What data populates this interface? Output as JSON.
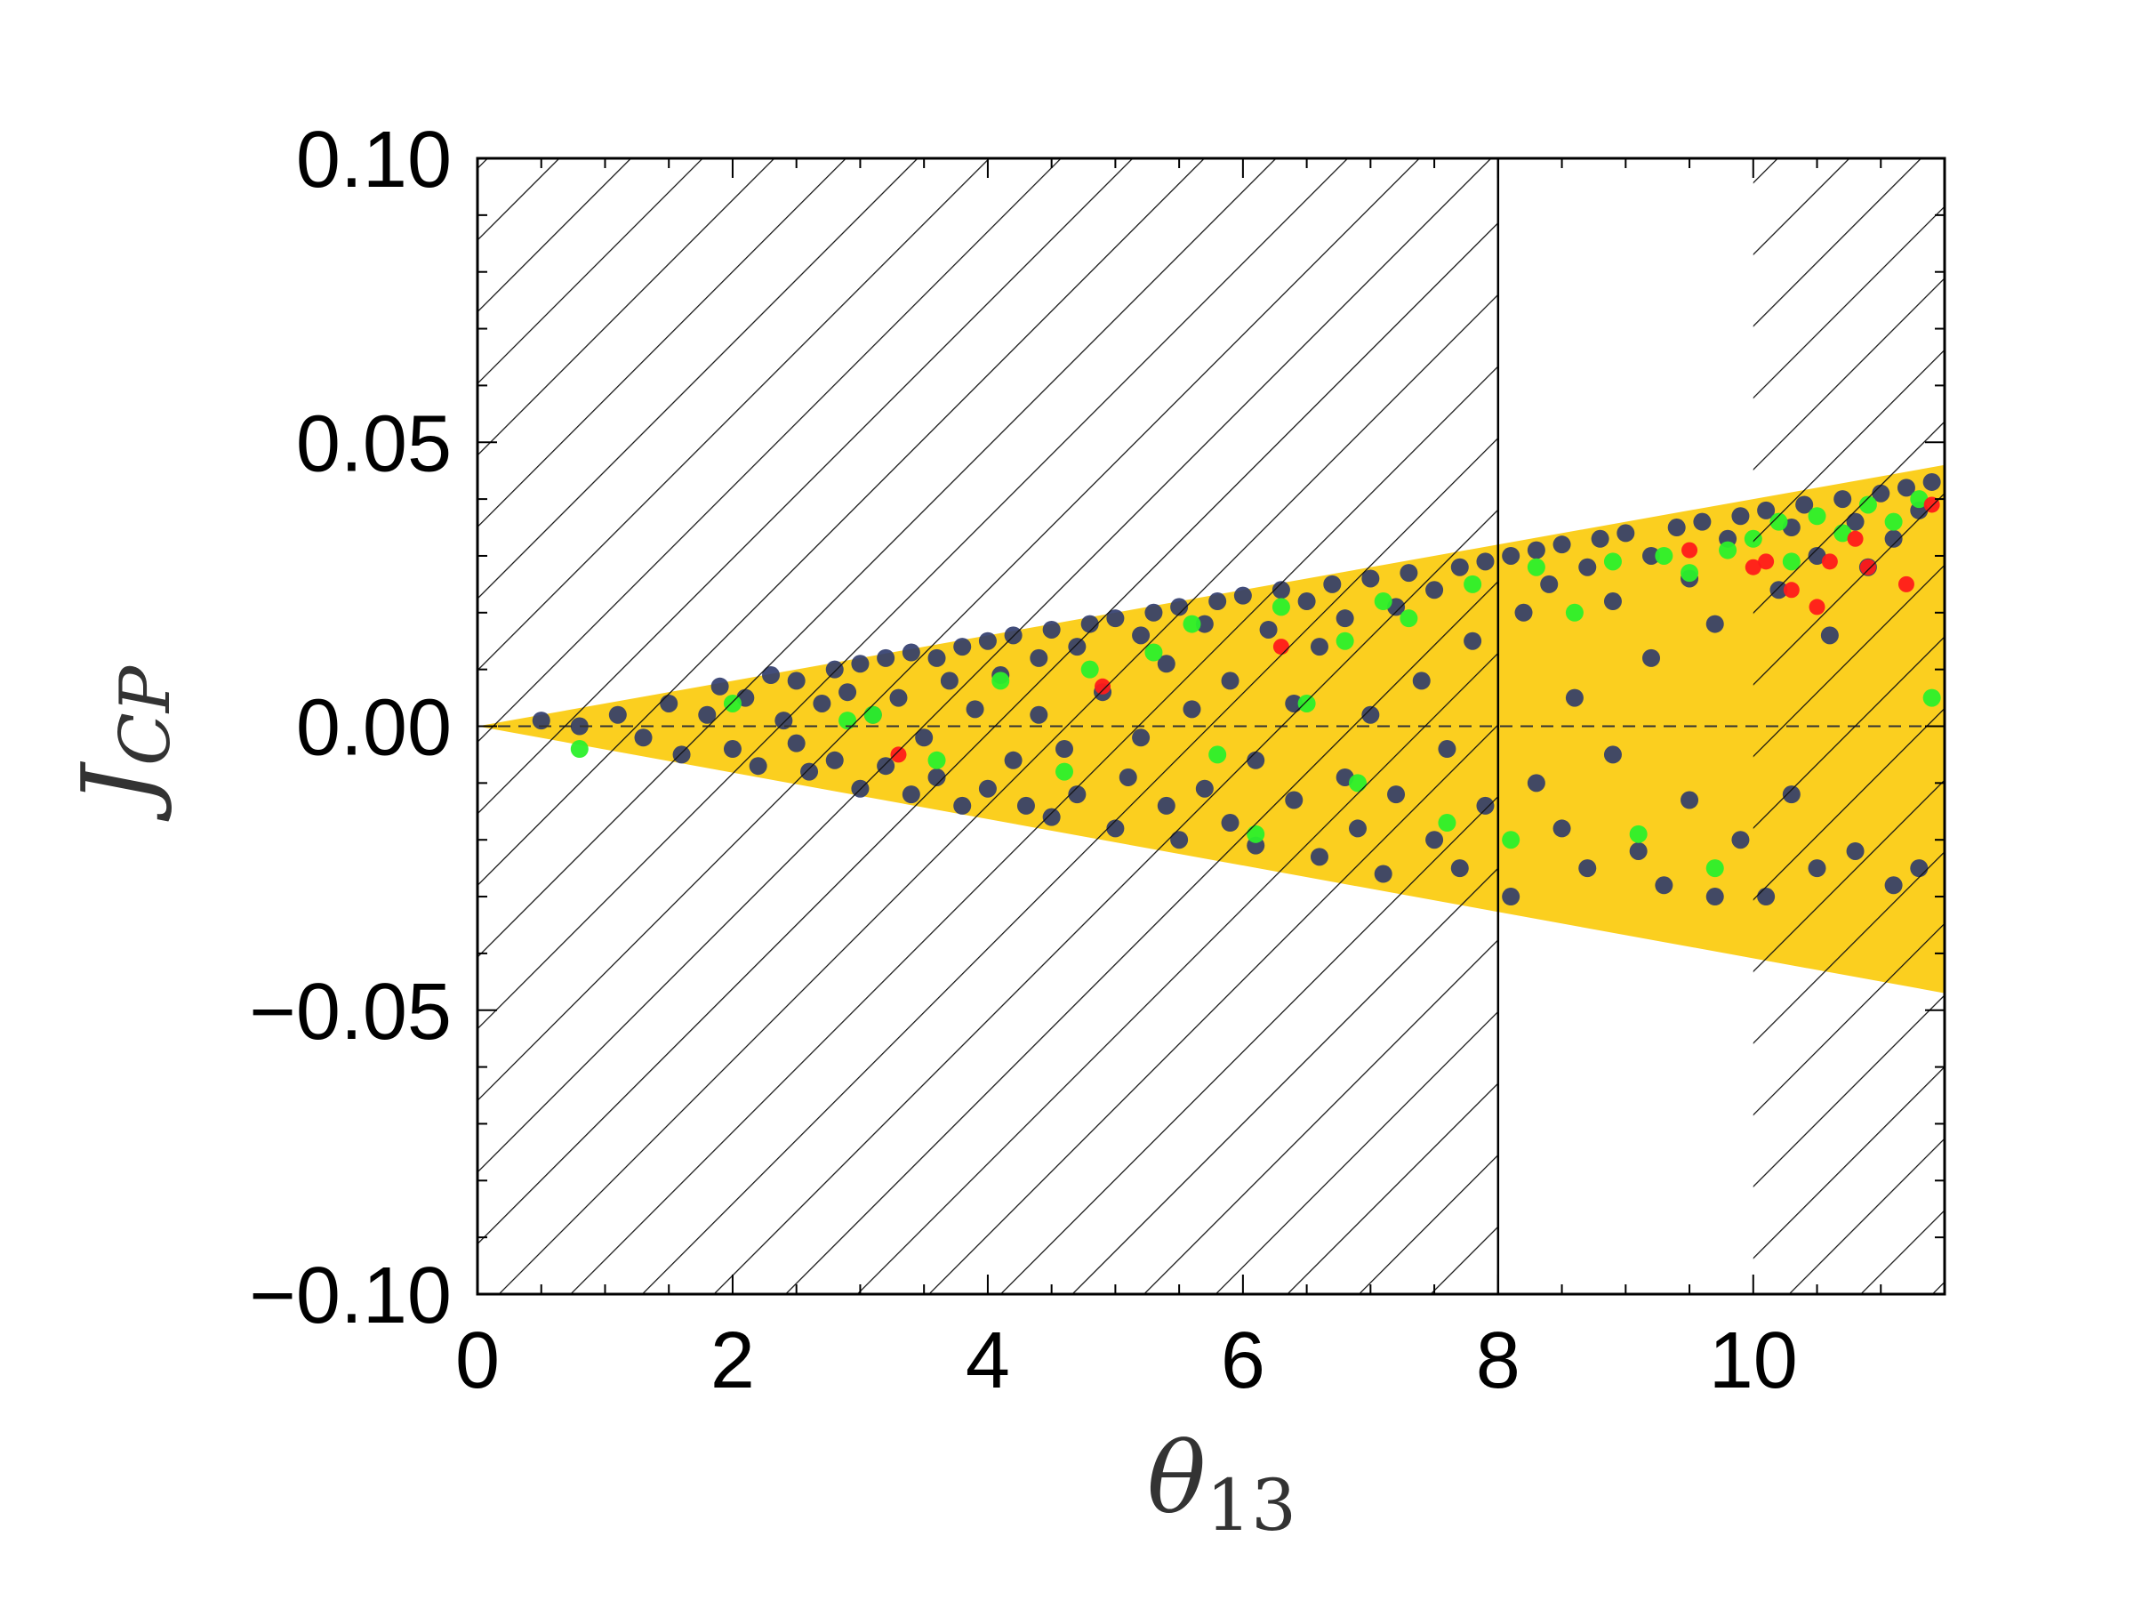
{
  "chart_data": {
    "type": "scatter",
    "title": "",
    "xlabel": "θ",
    "xlabel_sub": "13",
    "ylabel": "J",
    "ylabel_sub": "CP",
    "xlim": [
      0,
      11.5
    ],
    "ylim": [
      -0.1,
      0.1
    ],
    "x_ticks": [
      "0",
      "2",
      "4",
      "6",
      "8",
      "10"
    ],
    "y_ticks": [
      "0.10",
      "0.05",
      "0.00",
      "−0.05",
      "−0.10"
    ],
    "grid": false,
    "legend": "none",
    "reference_line": {
      "y": 0.0,
      "style": "dashed"
    },
    "hatched_excluded_ranges": [
      [
        0,
        8
      ],
      [
        10,
        11.5
      ]
    ],
    "allowed_band": {
      "upper_slope": 0.00405,
      "lower_slope": -0.0041,
      "upper_at_xmax": 0.046,
      "lower_at_xmax": -0.047,
      "color": "#fbcf1f"
    },
    "series": [
      {
        "color": "#2e3a6b",
        "points": [
          [
            0.5,
            0.001
          ],
          [
            0.8,
            0.0
          ],
          [
            1.1,
            0.002
          ],
          [
            1.3,
            -0.002
          ],
          [
            1.5,
            0.004
          ],
          [
            1.6,
            -0.005
          ],
          [
            1.8,
            0.002
          ],
          [
            1.9,
            0.007
          ],
          [
            2.0,
            -0.004
          ],
          [
            2.1,
            0.005
          ],
          [
            2.2,
            -0.007
          ],
          [
            2.3,
            0.009
          ],
          [
            2.4,
            0.001
          ],
          [
            2.5,
            -0.003
          ],
          [
            2.5,
            0.008
          ],
          [
            2.6,
            -0.008
          ],
          [
            2.7,
            0.004
          ],
          [
            2.8,
            0.01
          ],
          [
            2.8,
            -0.006
          ],
          [
            2.9,
            0.006
          ],
          [
            3.0,
            -0.011
          ],
          [
            3.0,
            0.011
          ],
          [
            3.1,
            0.002
          ],
          [
            3.2,
            -0.007
          ],
          [
            3.2,
            0.012
          ],
          [
            3.3,
            0.005
          ],
          [
            3.4,
            -0.012
          ],
          [
            3.4,
            0.013
          ],
          [
            3.5,
            -0.002
          ],
          [
            3.6,
            0.012
          ],
          [
            3.6,
            -0.009
          ],
          [
            3.7,
            0.008
          ],
          [
            3.8,
            -0.014
          ],
          [
            3.8,
            0.014
          ],
          [
            3.9,
            0.003
          ],
          [
            4.0,
            -0.011
          ],
          [
            4.0,
            0.015
          ],
          [
            4.1,
            0.009
          ],
          [
            4.2,
            -0.006
          ],
          [
            4.2,
            0.016
          ],
          [
            4.3,
            -0.014
          ],
          [
            4.4,
            0.012
          ],
          [
            4.4,
            0.002
          ],
          [
            4.5,
            -0.016
          ],
          [
            4.5,
            0.017
          ],
          [
            4.6,
            -0.004
          ],
          [
            4.7,
            0.014
          ],
          [
            4.7,
            -0.012
          ],
          [
            4.8,
            0.018
          ],
          [
            4.9,
            0.006
          ],
          [
            5.0,
            -0.018
          ],
          [
            5.0,
            0.019
          ],
          [
            5.1,
            -0.009
          ],
          [
            5.2,
            0.016
          ],
          [
            5.2,
            -0.002
          ],
          [
            5.3,
            0.02
          ],
          [
            5.4,
            -0.014
          ],
          [
            5.4,
            0.011
          ],
          [
            5.5,
            -0.02
          ],
          [
            5.5,
            0.021
          ],
          [
            5.6,
            0.003
          ],
          [
            5.7,
            -0.011
          ],
          [
            5.7,
            0.018
          ],
          [
            5.8,
            0.022
          ],
          [
            5.9,
            -0.017
          ],
          [
            5.9,
            0.008
          ],
          [
            6.0,
            0.023
          ],
          [
            6.1,
            -0.006
          ],
          [
            6.1,
            -0.021
          ],
          [
            6.2,
            0.017
          ],
          [
            6.3,
            0.024
          ],
          [
            6.4,
            -0.013
          ],
          [
            6.4,
            0.004
          ],
          [
            6.5,
            0.022
          ],
          [
            6.6,
            -0.023
          ],
          [
            6.6,
            0.014
          ],
          [
            6.7,
            0.025
          ],
          [
            6.8,
            -0.009
          ],
          [
            6.8,
            0.019
          ],
          [
            6.9,
            -0.018
          ],
          [
            7.0,
            0.026
          ],
          [
            7.0,
            0.002
          ],
          [
            7.1,
            -0.026
          ],
          [
            7.2,
            0.021
          ],
          [
            7.2,
            -0.012
          ],
          [
            7.3,
            0.027
          ],
          [
            7.4,
            0.008
          ],
          [
            7.5,
            -0.02
          ],
          [
            7.5,
            0.024
          ],
          [
            7.6,
            -0.004
          ],
          [
            7.7,
            0.028
          ],
          [
            7.7,
            -0.025
          ],
          [
            7.8,
            0.015
          ],
          [
            7.9,
            -0.014
          ],
          [
            7.9,
            0.029
          ],
          [
            8.1,
            0.03
          ],
          [
            8.1,
            -0.03
          ],
          [
            8.2,
            0.02
          ],
          [
            8.3,
            -0.01
          ],
          [
            8.3,
            0.031
          ],
          [
            8.4,
            0.025
          ],
          [
            8.5,
            -0.018
          ],
          [
            8.5,
            0.032
          ],
          [
            8.6,
            0.005
          ],
          [
            8.7,
            0.028
          ],
          [
            8.7,
            -0.025
          ],
          [
            8.8,
            0.033
          ],
          [
            8.9,
            -0.005
          ],
          [
            8.9,
            0.022
          ],
          [
            9.0,
            0.034
          ],
          [
            9.1,
            -0.022
          ],
          [
            9.2,
            0.03
          ],
          [
            9.2,
            0.012
          ],
          [
            9.3,
            -0.028
          ],
          [
            9.4,
            0.035
          ],
          [
            9.5,
            -0.013
          ],
          [
            9.5,
            0.026
          ],
          [
            9.6,
            0.036
          ],
          [
            9.7,
            -0.03
          ],
          [
            9.7,
            0.018
          ],
          [
            9.8,
            0.033
          ],
          [
            9.9,
            -0.02
          ],
          [
            9.9,
            0.037
          ],
          [
            10.1,
            0.038
          ],
          [
            10.1,
            -0.03
          ],
          [
            10.2,
            0.024
          ],
          [
            10.3,
            -0.012
          ],
          [
            10.3,
            0.035
          ],
          [
            10.4,
            0.039
          ],
          [
            10.5,
            -0.025
          ],
          [
            10.5,
            0.03
          ],
          [
            10.6,
            0.016
          ],
          [
            10.7,
            0.04
          ],
          [
            10.8,
            -0.022
          ],
          [
            10.8,
            0.036
          ],
          [
            10.9,
            0.028
          ],
          [
            11.0,
            0.041
          ],
          [
            11.1,
            -0.028
          ],
          [
            11.1,
            0.033
          ],
          [
            11.2,
            0.042
          ],
          [
            11.3,
            -0.025
          ],
          [
            11.3,
            0.038
          ],
          [
            11.4,
            0.043
          ]
        ]
      },
      {
        "color": "#2bf02b",
        "points": [
          [
            0.8,
            -0.004
          ],
          [
            2.0,
            0.004
          ],
          [
            2.9,
            0.001
          ],
          [
            3.1,
            0.002
          ],
          [
            3.6,
            -0.006
          ],
          [
            4.1,
            0.008
          ],
          [
            4.6,
            -0.008
          ],
          [
            4.8,
            0.01
          ],
          [
            5.3,
            0.013
          ],
          [
            5.6,
            0.018
          ],
          [
            5.8,
            -0.005
          ],
          [
            6.1,
            -0.019
          ],
          [
            6.3,
            0.021
          ],
          [
            6.5,
            0.004
          ],
          [
            6.8,
            0.015
          ],
          [
            6.9,
            -0.01
          ],
          [
            7.1,
            0.022
          ],
          [
            7.3,
            0.019
          ],
          [
            7.6,
            -0.017
          ],
          [
            7.8,
            0.025
          ],
          [
            8.1,
            -0.02
          ],
          [
            8.3,
            0.028
          ],
          [
            8.6,
            0.02
          ],
          [
            8.9,
            0.029
          ],
          [
            9.1,
            -0.019
          ],
          [
            9.3,
            0.03
          ],
          [
            9.5,
            0.027
          ],
          [
            9.7,
            -0.025
          ],
          [
            9.8,
            0.031
          ],
          [
            10.0,
            0.033
          ],
          [
            10.2,
            0.036
          ],
          [
            10.3,
            0.029
          ],
          [
            10.5,
            0.037
          ],
          [
            10.7,
            0.034
          ],
          [
            10.9,
            0.039
          ],
          [
            11.1,
            0.036
          ],
          [
            11.3,
            0.04
          ],
          [
            11.4,
            0.005
          ]
        ]
      },
      {
        "color": "#ff1a1a",
        "points": [
          [
            3.3,
            -0.005
          ],
          [
            4.9,
            0.007
          ],
          [
            6.3,
            0.014
          ],
          [
            9.5,
            0.031
          ],
          [
            10.0,
            0.028
          ],
          [
            10.1,
            0.029
          ],
          [
            10.3,
            0.024
          ],
          [
            10.5,
            0.021
          ],
          [
            10.6,
            0.029
          ],
          [
            10.8,
            0.033
          ],
          [
            10.9,
            0.028
          ],
          [
            11.2,
            0.025
          ],
          [
            11.4,
            0.039
          ]
        ]
      }
    ]
  }
}
